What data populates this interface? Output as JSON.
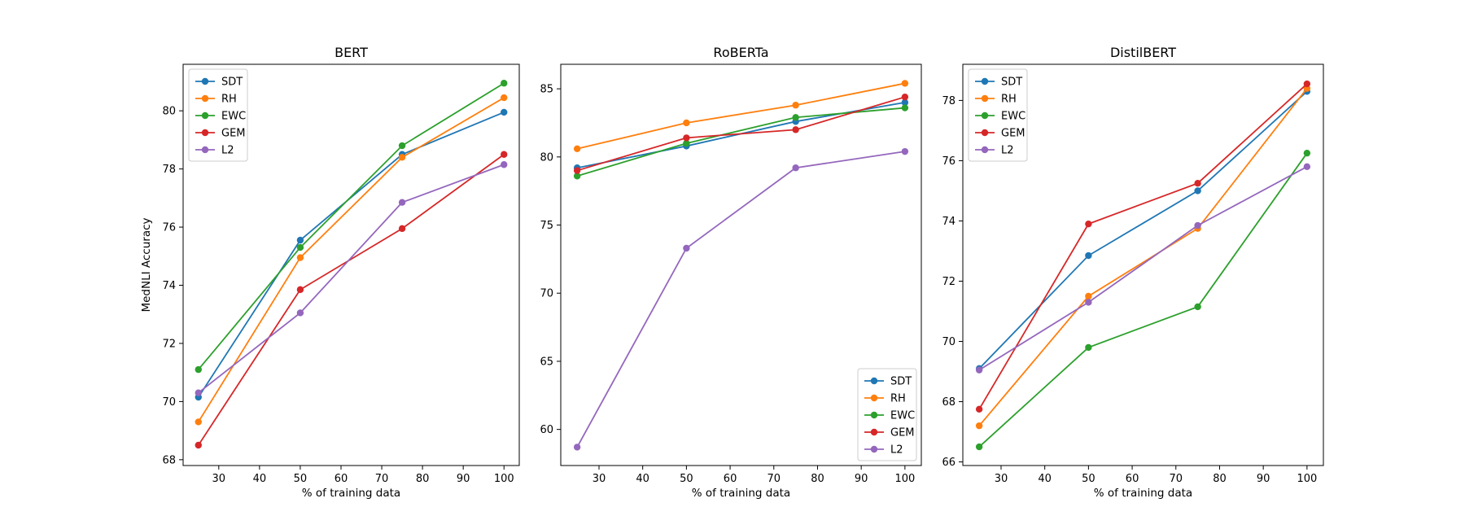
{
  "chart_data": [
    {
      "type": "line",
      "title": "BERT",
      "xlabel": "% of training data",
      "ylabel": "MedNLI Accuracy",
      "x": [
        25,
        50,
        75,
        100
      ],
      "xlim": [
        21.25,
        103.75
      ],
      "ylim": [
        67.8,
        81.6
      ],
      "xticks": [
        30,
        40,
        50,
        60,
        70,
        80,
        90,
        100
      ],
      "yticks": [
        68,
        70,
        72,
        74,
        76,
        78,
        80
      ],
      "legend": "upper-left",
      "series": [
        {
          "name": "SDT",
          "color": "#1f77b4",
          "values": [
            70.15,
            75.55,
            78.5,
            79.95
          ]
        },
        {
          "name": "RH",
          "color": "#ff7f0e",
          "values": [
            69.3,
            74.95,
            78.4,
            80.45
          ]
        },
        {
          "name": "EWC",
          "color": "#2ca02c",
          "values": [
            71.1,
            75.3,
            78.8,
            80.95
          ]
        },
        {
          "name": "GEM",
          "color": "#d62728",
          "values": [
            68.5,
            73.85,
            75.95,
            78.5
          ]
        },
        {
          "name": "L2",
          "color": "#9467bd",
          "values": [
            70.3,
            73.05,
            76.85,
            78.15
          ]
        }
      ]
    },
    {
      "type": "line",
      "title": "RoBERTa",
      "xlabel": "% of training data",
      "ylabel": "",
      "x": [
        25,
        50,
        75,
        100
      ],
      "xlim": [
        21.25,
        103.75
      ],
      "ylim": [
        57.35,
        86.8
      ],
      "xticks": [
        30,
        40,
        50,
        60,
        70,
        80,
        90,
        100
      ],
      "yticks": [
        60,
        65,
        70,
        75,
        80,
        85
      ],
      "legend": "lower-right",
      "series": [
        {
          "name": "SDT",
          "color": "#1f77b4",
          "values": [
            79.2,
            80.8,
            82.6,
            84.0
          ]
        },
        {
          "name": "RH",
          "color": "#ff7f0e",
          "values": [
            80.6,
            82.5,
            83.8,
            85.4
          ]
        },
        {
          "name": "EWC",
          "color": "#2ca02c",
          "values": [
            78.6,
            81.0,
            82.9,
            83.6
          ]
        },
        {
          "name": "GEM",
          "color": "#d62728",
          "values": [
            79.0,
            81.4,
            82.0,
            84.4
          ]
        },
        {
          "name": "L2",
          "color": "#9467bd",
          "values": [
            58.7,
            73.3,
            79.2,
            80.4
          ]
        }
      ]
    },
    {
      "type": "line",
      "title": "DistilBERT",
      "xlabel": "% of training data",
      "ylabel": "",
      "x": [
        25,
        50,
        75,
        100
      ],
      "xlim": [
        21.25,
        103.75
      ],
      "ylim": [
        65.88,
        79.2
      ],
      "xticks": [
        30,
        40,
        50,
        60,
        70,
        80,
        90,
        100
      ],
      "yticks": [
        66,
        68,
        70,
        72,
        74,
        76,
        78
      ],
      "legend": "upper-left",
      "series": [
        {
          "name": "SDT",
          "color": "#1f77b4",
          "values": [
            69.1,
            72.85,
            75.0,
            78.3
          ]
        },
        {
          "name": "RH",
          "color": "#ff7f0e",
          "values": [
            67.2,
            71.5,
            73.75,
            78.4
          ]
        },
        {
          "name": "EWC",
          "color": "#2ca02c",
          "values": [
            66.5,
            69.8,
            71.15,
            76.25
          ]
        },
        {
          "name": "GEM",
          "color": "#d62728",
          "values": [
            67.75,
            73.9,
            75.25,
            78.55
          ]
        },
        {
          "name": "L2",
          "color": "#9467bd",
          "values": [
            69.05,
            71.3,
            73.85,
            75.8
          ]
        }
      ]
    }
  ]
}
